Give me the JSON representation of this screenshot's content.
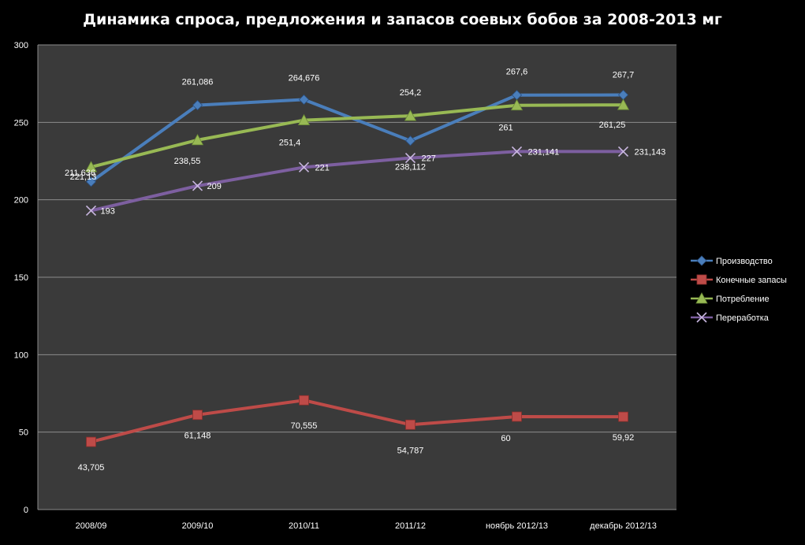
{
  "chart_data": {
    "type": "line",
    "title": "Динамика спроса, предложения и запасов соевых бобов за 2008-2013 мг",
    "xlabel": "",
    "ylabel": "",
    "ylim": [
      0,
      300
    ],
    "y_ticks": [
      "0",
      "50",
      "100",
      "150",
      "200",
      "250",
      "300"
    ],
    "categories": [
      "2008/09",
      "2009/10",
      "2010/11",
      "2011/12",
      "ноябрь 2012/13",
      "декабрь 2012/13"
    ],
    "grid": true,
    "legend_position": "right",
    "series": [
      {
        "name": "Производство",
        "color": "#4a7ebb",
        "marker": "diamond",
        "values": [
          211.636,
          261.086,
          264.676,
          238.112,
          267.6,
          267.7
        ],
        "labels": [
          "211,636",
          "261,086",
          "264,676",
          "238,112",
          "267,6",
          "267,7"
        ]
      },
      {
        "name": "Конечные запасы",
        "color": "#be4b48",
        "marker": "square",
        "values": [
          43.705,
          61.148,
          70.555,
          54.787,
          60,
          59.92
        ],
        "labels": [
          "43,705",
          "61,148",
          "70,555",
          "54,787",
          "60",
          "59,92"
        ]
      },
      {
        "name": "Потребление",
        "color": "#98b954",
        "marker": "triangle",
        "values": [
          221.13,
          238.55,
          251.4,
          254.2,
          261,
          261.25
        ],
        "labels": [
          "221,13",
          "238,55",
          "251,4",
          "254,2",
          "261",
          "261,25"
        ]
      },
      {
        "name": "Переработка",
        "color": "#7d5fa0",
        "marker": "x",
        "values": [
          193,
          209,
          221,
          227,
          231.141,
          231.143
        ],
        "labels": [
          "193",
          "209",
          "221",
          "227",
          "231,141",
          "231,143"
        ]
      }
    ]
  }
}
